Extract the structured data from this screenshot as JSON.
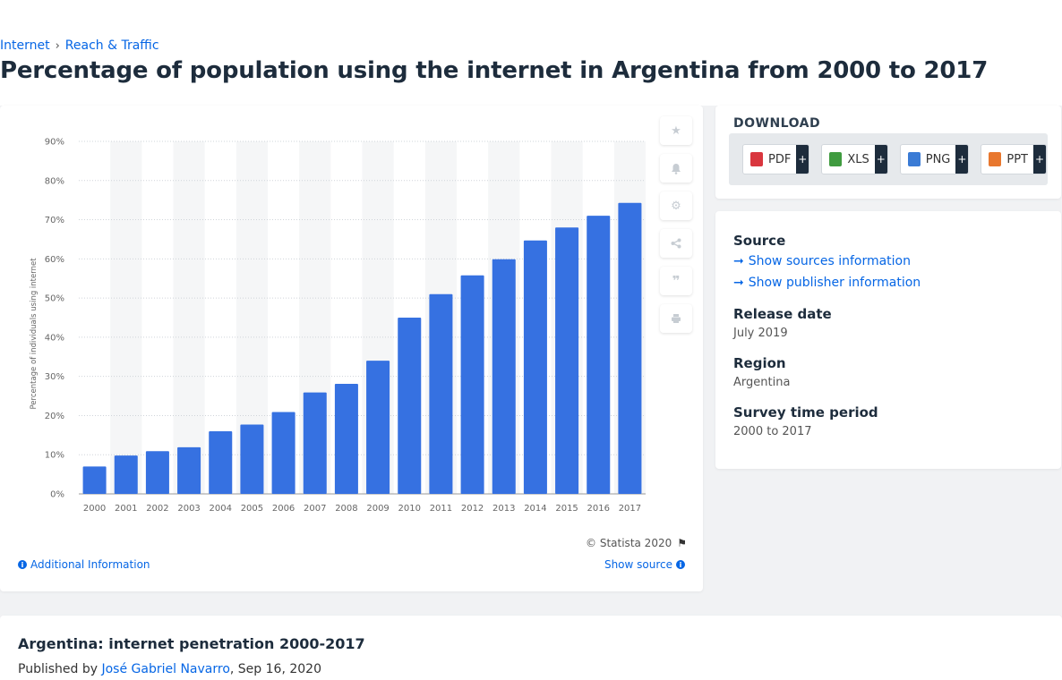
{
  "breadcrumb": {
    "items": [
      "Internet",
      "Reach & Traffic"
    ],
    "separator": "›"
  },
  "title": "Percentage of population using the internet in Argentina from 2000 to 2017",
  "chart_data": {
    "type": "bar",
    "title": "",
    "xlabel": "",
    "ylabel": "Percentage of individuals using internet",
    "categories": [
      "2000",
      "2001",
      "2002",
      "2003",
      "2004",
      "2005",
      "2006",
      "2007",
      "2008",
      "2009",
      "2010",
      "2011",
      "2012",
      "2013",
      "2014",
      "2015",
      "2016",
      "2017"
    ],
    "values": [
      7.0,
      9.8,
      10.9,
      11.9,
      16.0,
      17.7,
      20.9,
      25.9,
      28.1,
      34.0,
      45.0,
      51.0,
      55.8,
      59.9,
      64.7,
      68.0,
      71.0,
      74.3
    ],
    "ylim": [
      0,
      90
    ],
    "yticks": [
      "0%",
      "10%",
      "20%",
      "30%",
      "40%",
      "50%",
      "60%",
      "70%",
      "80%",
      "90%"
    ],
    "bar_color": "#3671e1",
    "grid": true,
    "legend": "none"
  },
  "chart_footer": {
    "copyright": "© Statista 2020",
    "additional_info": "Additional Information",
    "show_source": "Show source"
  },
  "download": {
    "title": "DOWNLOAD",
    "formats": [
      {
        "label": "PDF",
        "icon": "pdf-file-icon",
        "color": "#d9363e"
      },
      {
        "label": "XLS",
        "icon": "xls-file-icon",
        "color": "#3f9b3f"
      },
      {
        "label": "PNG",
        "icon": "png-file-icon",
        "color": "#3a7bd5"
      },
      {
        "label": "PPT",
        "icon": "ppt-file-icon",
        "color": "#e8772e"
      }
    ],
    "plus": "+"
  },
  "meta": {
    "source_heading": "Source",
    "show_sources": "Show sources information",
    "show_publisher": "Show publisher information",
    "release_heading": "Release date",
    "release_value": "July 2019",
    "region_heading": "Region",
    "region_value": "Argentina",
    "survey_heading": "Survey time period",
    "survey_value": "2000 to 2017"
  },
  "article": {
    "title": "Argentina: internet penetration 2000-2017",
    "published_prefix": "Published by",
    "author": "José Gabriel Navarro",
    "date": ", Sep 16, 2020"
  },
  "tools": [
    "star-icon",
    "bell-icon",
    "gear-icon",
    "share-icon",
    "quote-icon",
    "print-icon"
  ],
  "colors": {
    "accent": "#0666e5",
    "title": "#1d2c3c",
    "bar": "#3671e1"
  }
}
